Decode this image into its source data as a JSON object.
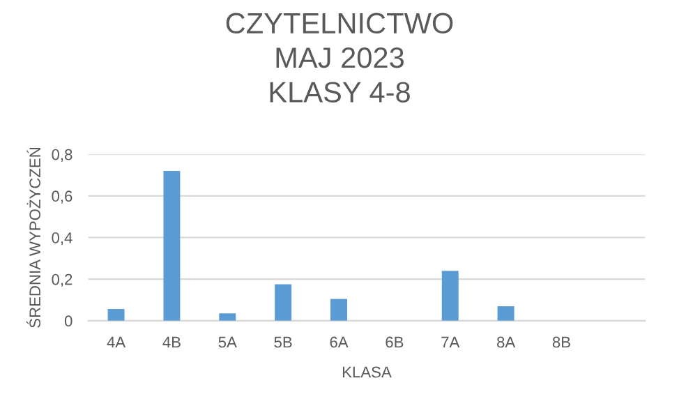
{
  "chart_data": {
    "type": "bar",
    "title": "CZYTELNICTWO\nMAJ 2023\nKLASY 4-8",
    "xlabel": "KLASA",
    "ylabel": "ŚREDNIA WYPOŻYCZEŃ",
    "categories": [
      "4A",
      "4B",
      "5A",
      "5B",
      "6A",
      "6B",
      "7A",
      "8A",
      "8B",
      null
    ],
    "values": [
      0.056,
      0.72,
      0.035,
      0.175,
      0.105,
      0,
      0.24,
      0.07,
      0,
      null
    ],
    "color": "#5b9bd5",
    "ylim": [
      0,
      0.8
    ],
    "yticks": [
      {
        "value": 0,
        "label": "0"
      },
      {
        "value": 0.2,
        "label": "0,2"
      },
      {
        "value": 0.4,
        "label": "0,4"
      },
      {
        "value": 0.6,
        "label": "0,6"
      },
      {
        "value": 0.8,
        "label": "0,8"
      }
    ],
    "grid": "y",
    "legend": false
  }
}
